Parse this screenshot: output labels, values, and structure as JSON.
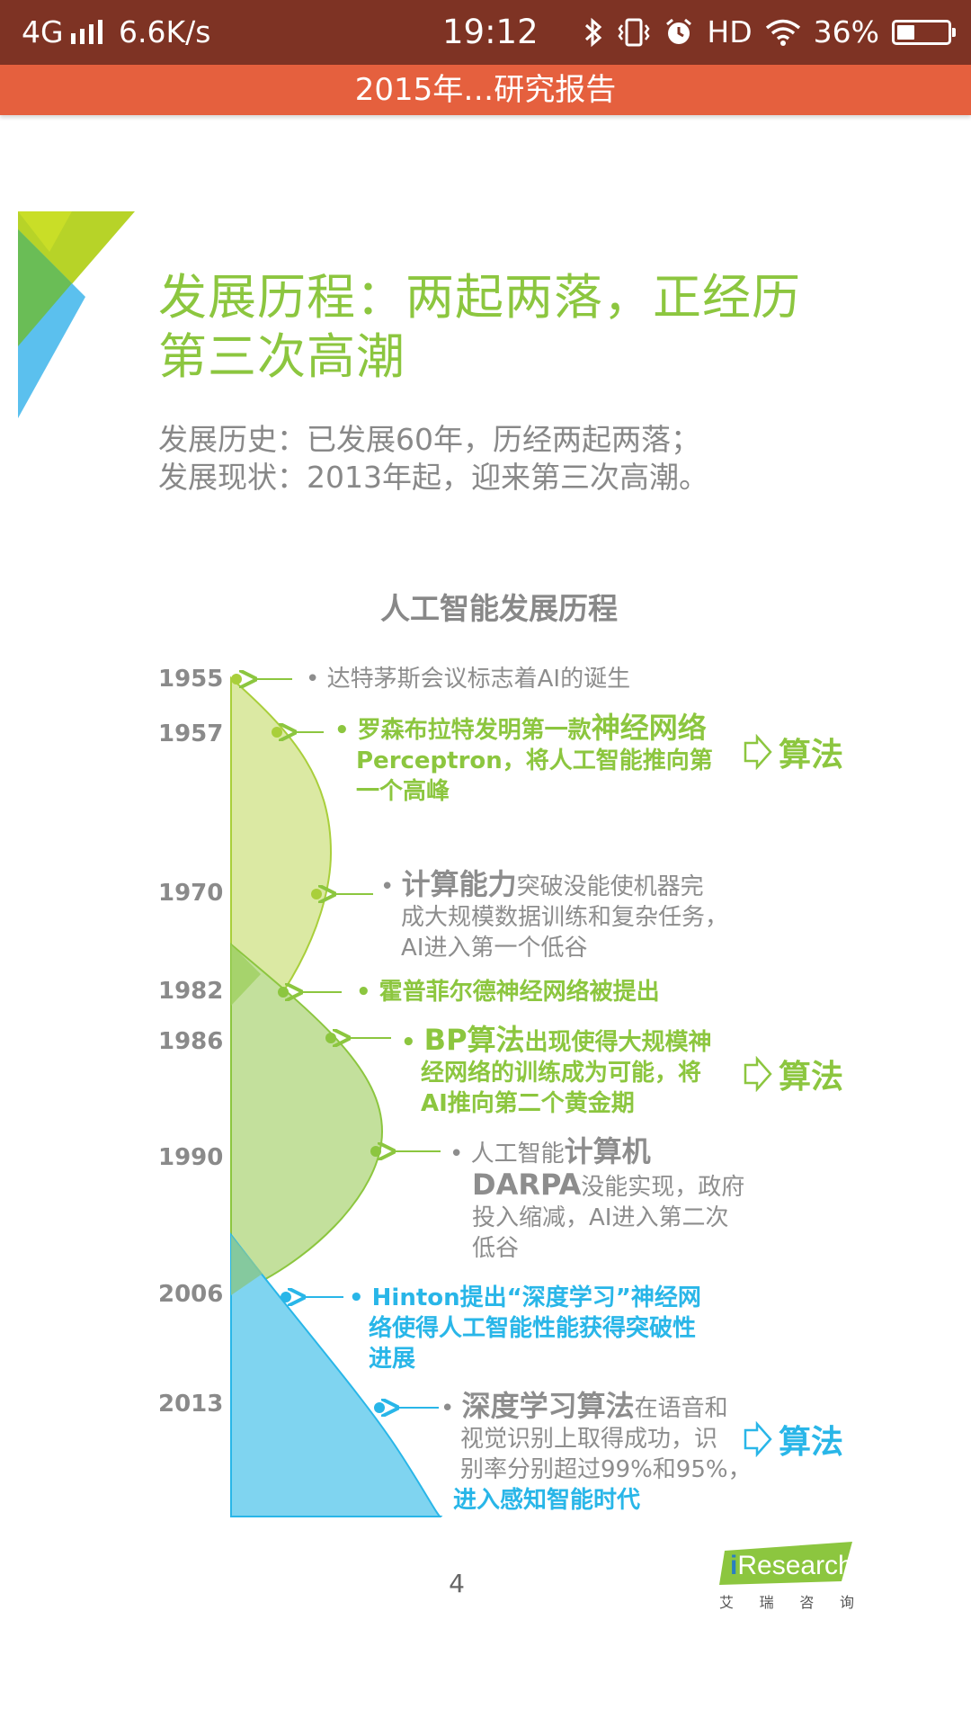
{
  "status_bar": {
    "network": "4G",
    "speed": "6.6K/s",
    "time": "19:12",
    "hd": "HD",
    "battery": "36%",
    "battery_level": 0.36
  },
  "title_bar": {
    "title": "2015年…研究报告"
  },
  "page": {
    "heading": "发展历程：两起两落，正经历第三次高潮",
    "subtitle_lines": [
      "发展历史：已发展60年，历经两起两落；",
      "发展现状：2013年起，迎来第三次高潮。"
    ],
    "chart_title": "人工智能发展历程",
    "page_number": "4",
    "logo": {
      "name": "iResearch",
      "sub": [
        "艾",
        "瑞",
        "咨",
        "询"
      ]
    }
  },
  "timeline": {
    "years": [
      "1955",
      "1957",
      "1970",
      "1982",
      "1986",
      "1990",
      "2006",
      "2013"
    ],
    "events": [
      {
        "year": "1955",
        "text": "达特茅斯会议标志着AI的诞生"
      },
      {
        "year": "1957",
        "lead": "罗森布拉特发明第一款",
        "bold": "神经网络",
        "line2": "Perceptron，将人工智能推向第",
        "line3": "一个高峰"
      },
      {
        "year": "1970",
        "bold": "计算能力",
        "rest": "突破没能使机器完",
        "line2": "成大规模数据训练和复杂任务，",
        "line3": "AI进入第一个低谷"
      },
      {
        "year": "1982",
        "text": "霍普菲尔德神经网络被提出"
      },
      {
        "year": "1986",
        "bold": "BP算法",
        "rest": "出现使得大规模神",
        "line2": "经网络的训练成为可能，将",
        "line3": "AI推向第二个黄金期"
      },
      {
        "year": "1990",
        "lead": "人工智能",
        "bold": "计算机",
        "bold2": "DARPA",
        "rest2": "没能实现，政府",
        "line3": "投入缩减，AI进入第二次",
        "line4": "低谷"
      },
      {
        "year": "2006",
        "text": "Hinton提出“深度学习”神经网",
        "line2": "络使得人工智能性能获得突破性",
        "line3": "进展"
      },
      {
        "year": "2013",
        "bold": "深度学习算法",
        "rest": "在语音和",
        "line2": "视觉识别上取得成功，识",
        "line3": "别率分别超过99%和95%，",
        "line4": "进入感知智能时代"
      }
    ],
    "algo_label": "算法"
  }
}
